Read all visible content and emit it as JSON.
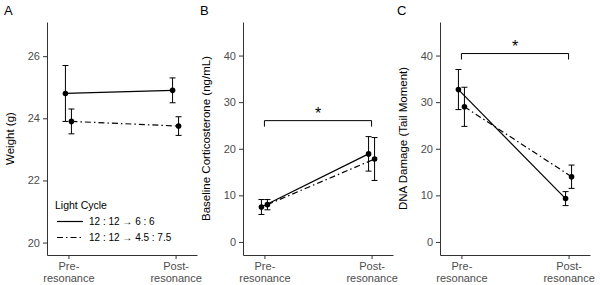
{
  "chart_data": [
    {
      "type": "line",
      "title": "A",
      "y_label": "Weight (g)",
      "categories": [
        "Pre-\nresonance",
        "Post-\nresonance"
      ],
      "ylim": [
        19.6,
        27.1
      ],
      "yticks": [
        20,
        22,
        24,
        26
      ],
      "legend": "bottom-left",
      "legend_title": "Light Cycle",
      "series": [
        {
          "name": "12 : 12 → 6 : 6",
          "color": "#000000",
          "line_style": "solid",
          "marker": "circle",
          "values": [
            24.8,
            24.9
          ],
          "errors": [
            0.9,
            0.4
          ]
        },
        {
          "name": "12 : 12 → 4.5 : 7.5",
          "color": "#000000",
          "line_style": "dashdot",
          "marker": "circle",
          "values": [
            23.9,
            23.75
          ],
          "errors": [
            0.4,
            0.3
          ]
        }
      ]
    },
    {
      "type": "line",
      "title": "B",
      "y_label": "Baseline Corticosterone (ng/mL)",
      "categories": [
        "Pre-\nresonance",
        "Post-\nresonance"
      ],
      "ylim": [
        -2.8,
        47.2
      ],
      "yticks": [
        0,
        10,
        20,
        30,
        40
      ],
      "annotations": [
        {
          "text": "*"
        }
      ],
      "series": [
        {
          "color": "#000000",
          "line_style": "solid",
          "marker": "circle",
          "values": [
            7.5,
            18.9
          ],
          "errors": [
            1.6,
            3.7
          ]
        },
        {
          "color": "#000000",
          "line_style": "dashdot",
          "marker": "circle",
          "values": [
            8.0,
            17.8
          ],
          "errors": [
            1.1,
            4.6
          ]
        }
      ]
    },
    {
      "type": "line",
      "title": "C",
      "y_label": "DNA Damage (Tail Moment)",
      "categories": [
        "Pre-\nresonance",
        "Post-\nresonance"
      ],
      "ylim": [
        -2.8,
        47.2
      ],
      "yticks": [
        0,
        10,
        20,
        30,
        40
      ],
      "annotations": [
        {
          "text": "*"
        }
      ],
      "series": [
        {
          "color": "#000000",
          "line_style": "solid",
          "marker": "circle",
          "values": [
            32.7,
            9.3
          ],
          "errors": [
            4.3,
            1.5
          ]
        },
        {
          "color": "#000000",
          "line_style": "dashdot",
          "marker": "circle",
          "values": [
            29.0,
            14.0
          ],
          "errors": [
            4.2,
            2.5
          ]
        }
      ]
    }
  ]
}
